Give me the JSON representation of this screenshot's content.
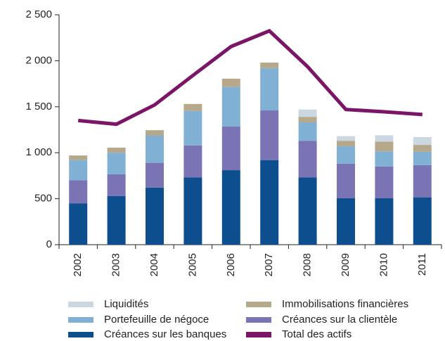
{
  "chart_data": {
    "type": "bar",
    "stacked": true,
    "categories": [
      "2002",
      "2003",
      "2004",
      "2005",
      "2006",
      "2007",
      "2008",
      "2009",
      "2010",
      "2011"
    ],
    "series": [
      {
        "name": "Créances sur les banques",
        "color": "#0d4f8e",
        "values": [
          450,
          530,
          620,
          730,
          810,
          920,
          730,
          505,
          505,
          515
        ]
      },
      {
        "name": "Créances sur la clientèle",
        "color": "#7a74b5",
        "values": [
          250,
          235,
          270,
          350,
          475,
          540,
          400,
          375,
          345,
          350
        ]
      },
      {
        "name": "Portefeuille de négoce",
        "color": "#80b1d4",
        "values": [
          220,
          235,
          295,
          375,
          430,
          460,
          200,
          190,
          165,
          145
        ]
      },
      {
        "name": "Immobilisations financières",
        "color": "#b6a98b",
        "values": [
          50,
          55,
          60,
          75,
          90,
          60,
          60,
          60,
          105,
          75
        ]
      },
      {
        "name": "Liquidités",
        "color": "#cbd7e1",
        "values": [
          0,
          0,
          0,
          0,
          0,
          0,
          80,
          50,
          70,
          85
        ]
      },
      {
        "name": "Total des actifs",
        "color": "#7b1567",
        "type": "line",
        "values": [
          1350,
          1310,
          1520,
          1840,
          2155,
          2325,
          1935,
          1470,
          1445,
          1415
        ]
      }
    ],
    "ylim": [
      0,
      2500
    ],
    "yticks": [
      0,
      500,
      {
        "value": 1000,
        "label": "1 000"
      },
      {
        "value": 1500,
        "label": "1 500"
      },
      {
        "value": 2000,
        "label": "2 000"
      },
      {
        "value": 2500,
        "label": "2 500"
      }
    ]
  }
}
